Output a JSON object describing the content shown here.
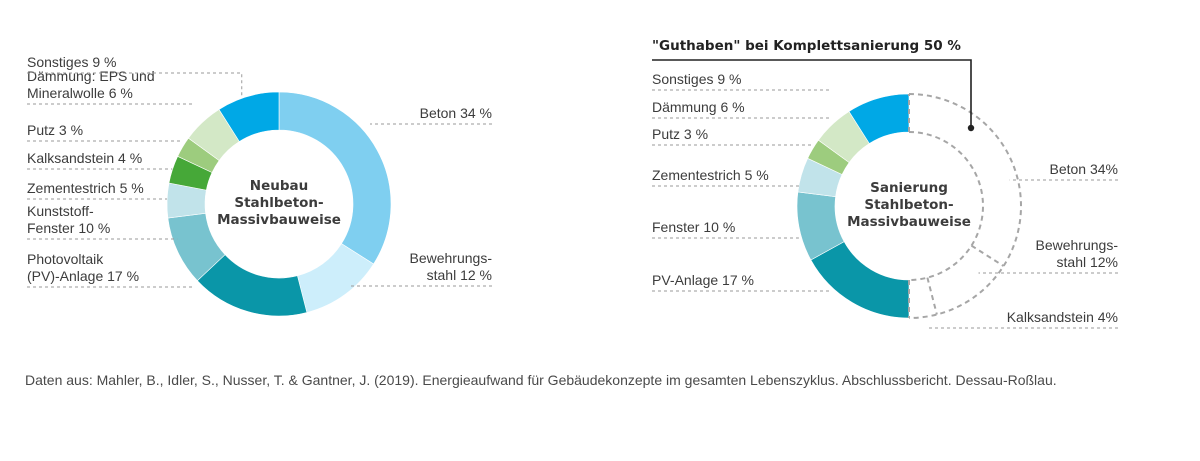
{
  "colors": {
    "beton": "#7fcff0",
    "bewehrung": "#cdeefb",
    "pv": "#0a96a8",
    "fenster": "#78c3cf",
    "zementestrich": "#c1e3ea",
    "kalksandstein": "#46a838",
    "putz": "#9dcc7e",
    "daemmung": "#d3e8c6",
    "sonstiges": "#00a8e6",
    "guthaben": "#a6a6a6"
  },
  "chart_data": [
    {
      "type": "pie",
      "donut": true,
      "title": "Neubau Stahlbeton-Massivbauweise",
      "center_lines": [
        "Neubau",
        "Stahlbeton-",
        "Massivbauweise"
      ],
      "slices": [
        {
          "key": "beton",
          "value": 34,
          "label_lines": [
            "Beton 34 %"
          ],
          "side": "right"
        },
        {
          "key": "bewehrung",
          "value": 12,
          "label_lines": [
            "Bewehrungs-",
            "stahl 12 %"
          ],
          "side": "right"
        },
        {
          "key": "pv",
          "value": 17,
          "label_lines": [
            "Photovoltaik",
            "(PV)-Anlage 17 %"
          ],
          "side": "left"
        },
        {
          "key": "fenster",
          "value": 10,
          "label_lines": [
            "Kunststoff-",
            "Fenster 10 %"
          ],
          "side": "left"
        },
        {
          "key": "zementestrich",
          "value": 5,
          "label_lines": [
            "Zementestrich 5 %"
          ],
          "side": "left"
        },
        {
          "key": "kalksandstein",
          "value": 4,
          "label_lines": [
            "Kalksandstein 4 %"
          ],
          "side": "left"
        },
        {
          "key": "putz",
          "value": 3,
          "label_lines": [
            "Putz 3 %"
          ],
          "side": "left"
        },
        {
          "key": "daemmung",
          "value": 6,
          "label_lines": [
            "Dämmung: EPS und",
            "Mineralwolle 6 %"
          ],
          "side": "left"
        },
        {
          "key": "sonstiges",
          "value": 9,
          "label_lines": [
            "Sonstiges 9 %"
          ],
          "side": "left"
        }
      ]
    },
    {
      "type": "pie",
      "donut": true,
      "title": "Sanierung Stahlbeton-Massivbauweise",
      "center_lines": [
        "Sanierung",
        "Stahlbeton-",
        "Massivbauweise"
      ],
      "header": "\"Guthaben\" bei Komplettsanierung 50 %",
      "slices": [
        {
          "key": "beton",
          "value": 34,
          "label_lines": [
            "Beton 34%"
          ],
          "side": "right",
          "hollow": true
        },
        {
          "key": "bewehrung",
          "value": 12,
          "label_lines": [
            "Bewehrungs-",
            "stahl 12%"
          ],
          "side": "right",
          "hollow": true
        },
        {
          "key": "kalksandstein",
          "value": 4,
          "label_lines": [
            "Kalksandstein 4%"
          ],
          "side": "right",
          "hollow": true
        },
        {
          "key": "pv",
          "value": 17,
          "label_lines": [
            "PV-Anlage 17 %"
          ],
          "side": "left"
        },
        {
          "key": "fenster",
          "value": 10,
          "label_lines": [
            "Fenster 10 %"
          ],
          "side": "left"
        },
        {
          "key": "zementestrich",
          "value": 5,
          "label_lines": [
            "Zementestrich 5 %"
          ],
          "side": "left"
        },
        {
          "key": "putz",
          "value": 3,
          "label_lines": [
            "Putz 3 %"
          ],
          "side": "left"
        },
        {
          "key": "daemmung",
          "value": 6,
          "label_lines": [
            "Dämmung 6 %"
          ],
          "side": "left"
        },
        {
          "key": "sonstiges",
          "value": 9,
          "label_lines": [
            "Sonstiges 9 %"
          ],
          "side": "left"
        }
      ]
    }
  ],
  "source": "Daten aus: Mahler, B., Idler, S., Nusser, T. & Gantner, J. (2019). Energieaufwand für Gebäudekonzepte im gesamten Lebenszyklus. Abschlussbericht. Dessau-Roßlau."
}
